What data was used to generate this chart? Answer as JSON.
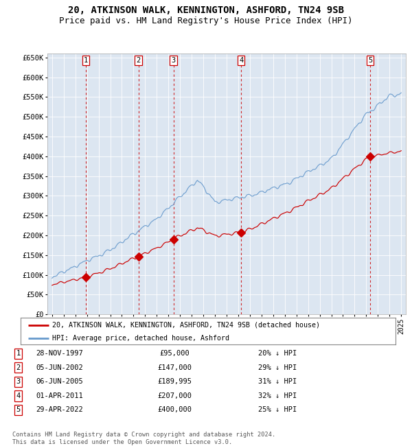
{
  "title": "20, ATKINSON WALK, KENNINGTON, ASHFORD, TN24 9SB",
  "subtitle": "Price paid vs. HM Land Registry's House Price Index (HPI)",
  "title_fontsize": 10,
  "subtitle_fontsize": 9,
  "bg_color": "#dce6f1",
  "grid_color": "#ffffff",
  "hpi_line_color": "#6699cc",
  "price_line_color": "#cc0000",
  "sale_marker_color": "#cc0000",
  "dashed_line_color": "#cc0000",
  "legend_label_price": "20, ATKINSON WALK, KENNINGTON, ASHFORD, TN24 9SB (detached house)",
  "legend_label_hpi": "HPI: Average price, detached house, Ashford",
  "sales": [
    {
      "num": 1,
      "date": "28-NOV-1997",
      "year": 1997.91,
      "price": 95000,
      "pct": "20%"
    },
    {
      "num": 2,
      "date": "05-JUN-2002",
      "year": 2002.42,
      "price": 147000,
      "pct": "29%"
    },
    {
      "num": 3,
      "date": "06-JUN-2005",
      "year": 2005.43,
      "price": 189995,
      "pct": "31%"
    },
    {
      "num": 4,
      "date": "01-APR-2011",
      "year": 2011.25,
      "price": 207000,
      "pct": "32%"
    },
    {
      "num": 5,
      "date": "29-APR-2022",
      "year": 2022.33,
      "price": 400000,
      "pct": "25%"
    }
  ],
  "ylim": [
    0,
    660000
  ],
  "xlim_start": 1994.6,
  "xlim_end": 2025.4,
  "yticks": [
    0,
    50000,
    100000,
    150000,
    200000,
    250000,
    300000,
    350000,
    400000,
    450000,
    500000,
    550000,
    600000,
    650000
  ],
  "ytick_labels": [
    "£0",
    "£50K",
    "£100K",
    "£150K",
    "£200K",
    "£250K",
    "£300K",
    "£350K",
    "£400K",
    "£450K",
    "£500K",
    "£550K",
    "£600K",
    "£650K"
  ],
  "footer_text": "Contains HM Land Registry data © Crown copyright and database right 2024.\nThis data is licensed under the Open Government Licence v3.0.",
  "table_rows": [
    [
      1,
      "28-NOV-1997",
      "£95,000",
      "20% ↓ HPI"
    ],
    [
      2,
      "05-JUN-2002",
      "£147,000",
      "29% ↓ HPI"
    ],
    [
      3,
      "06-JUN-2005",
      "£189,995",
      "31% ↓ HPI"
    ],
    [
      4,
      "01-APR-2011",
      "£207,000",
      "32% ↓ HPI"
    ],
    [
      5,
      "29-APR-2022",
      "£400,000",
      "25% ↓ HPI"
    ]
  ]
}
